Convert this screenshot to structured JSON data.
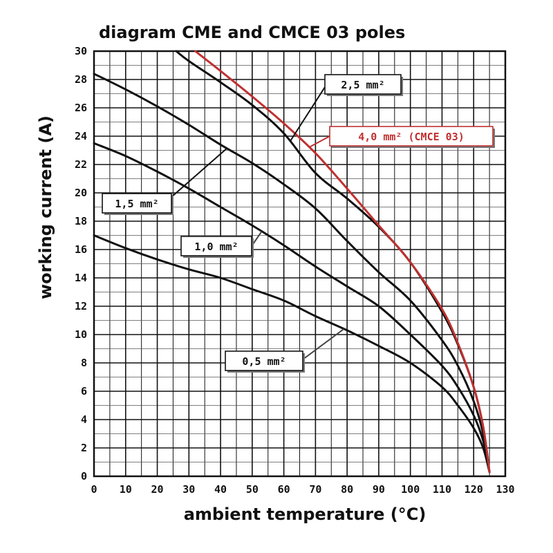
{
  "chart_data": {
    "type": "line",
    "title": "diagram CME and CMCE 03 poles",
    "xlabel": "ambient temperature (°C)",
    "ylabel": "working current (A)",
    "xlim": [
      0,
      130
    ],
    "ylim": [
      0,
      30
    ],
    "x_ticks": [
      "0",
      "10",
      "20",
      "30",
      "40",
      "50",
      "60",
      "70",
      "80",
      "90",
      "100",
      "110",
      "120",
      "130"
    ],
    "y_ticks": [
      "0",
      "2",
      "4",
      "6",
      "8",
      "10",
      "12",
      "14",
      "16",
      "18",
      "20",
      "22",
      "24",
      "26",
      "28",
      "30"
    ],
    "grid": true,
    "series": [
      {
        "name": "0,5 mm²",
        "color": "#111111",
        "x": [
          0,
          10,
          20,
          30,
          40,
          50,
          60,
          70,
          80,
          90,
          100,
          110,
          115,
          120,
          123,
          125
        ],
        "y": [
          17.0,
          16.1,
          15.3,
          14.6,
          14.0,
          13.2,
          12.4,
          11.3,
          10.3,
          9.2,
          8.0,
          6.3,
          5.0,
          3.4,
          2.0,
          0.3
        ]
      },
      {
        "name": "1,0 mm²",
        "color": "#111111",
        "x": [
          0,
          10,
          20,
          30,
          40,
          50,
          60,
          70,
          80,
          90,
          100,
          110,
          115,
          120,
          123,
          125
        ],
        "y": [
          23.5,
          22.6,
          21.5,
          20.3,
          19.0,
          17.7,
          16.3,
          14.8,
          13.4,
          12.0,
          10.0,
          7.8,
          6.3,
          4.3,
          2.5,
          0.3
        ]
      },
      {
        "name": "1,5 mm²",
        "color": "#111111",
        "x": [
          0,
          10,
          20,
          30,
          40,
          50,
          60,
          70,
          80,
          90,
          100,
          110,
          115,
          120,
          123,
          125
        ],
        "y": [
          28.4,
          27.3,
          26.1,
          24.8,
          23.4,
          22.1,
          20.6,
          18.9,
          16.6,
          14.4,
          12.4,
          9.6,
          7.8,
          5.3,
          3.0,
          0.3
        ]
      },
      {
        "name": "2,5 mm²",
        "color": "#111111",
        "x": [
          26,
          30,
          40,
          50,
          60,
          70,
          80,
          90,
          100,
          110,
          115,
          120,
          123,
          125
        ],
        "y": [
          30.0,
          29.3,
          27.8,
          26.2,
          24.2,
          21.4,
          19.6,
          17.6,
          15.1,
          11.6,
          9.3,
          6.3,
          3.5,
          0.3
        ]
      },
      {
        "name": "4,0 mm² (CMCE 03)",
        "color": "#c03030",
        "x": [
          32,
          40,
          50,
          60,
          70,
          80,
          90,
          100,
          110,
          115,
          120,
          123,
          125
        ],
        "y": [
          30.0,
          28.6,
          26.8,
          24.9,
          22.8,
          20.3,
          17.7,
          15.1,
          11.8,
          9.4,
          6.3,
          3.5,
          0.3
        ]
      }
    ],
    "annotations": [
      {
        "text": "2,5 mm²",
        "series": 3,
        "at_x": 62
      },
      {
        "text": "4,0 mm² (CMCE 03)",
        "series": 4,
        "at_x": 68
      },
      {
        "text": "1,5 mm²",
        "series": 2,
        "at_x": 42
      },
      {
        "text": "1,0 mm²",
        "series": 1,
        "at_x": 53
      },
      {
        "text": "0,5 mm²",
        "series": 0,
        "at_x": 79
      }
    ]
  }
}
